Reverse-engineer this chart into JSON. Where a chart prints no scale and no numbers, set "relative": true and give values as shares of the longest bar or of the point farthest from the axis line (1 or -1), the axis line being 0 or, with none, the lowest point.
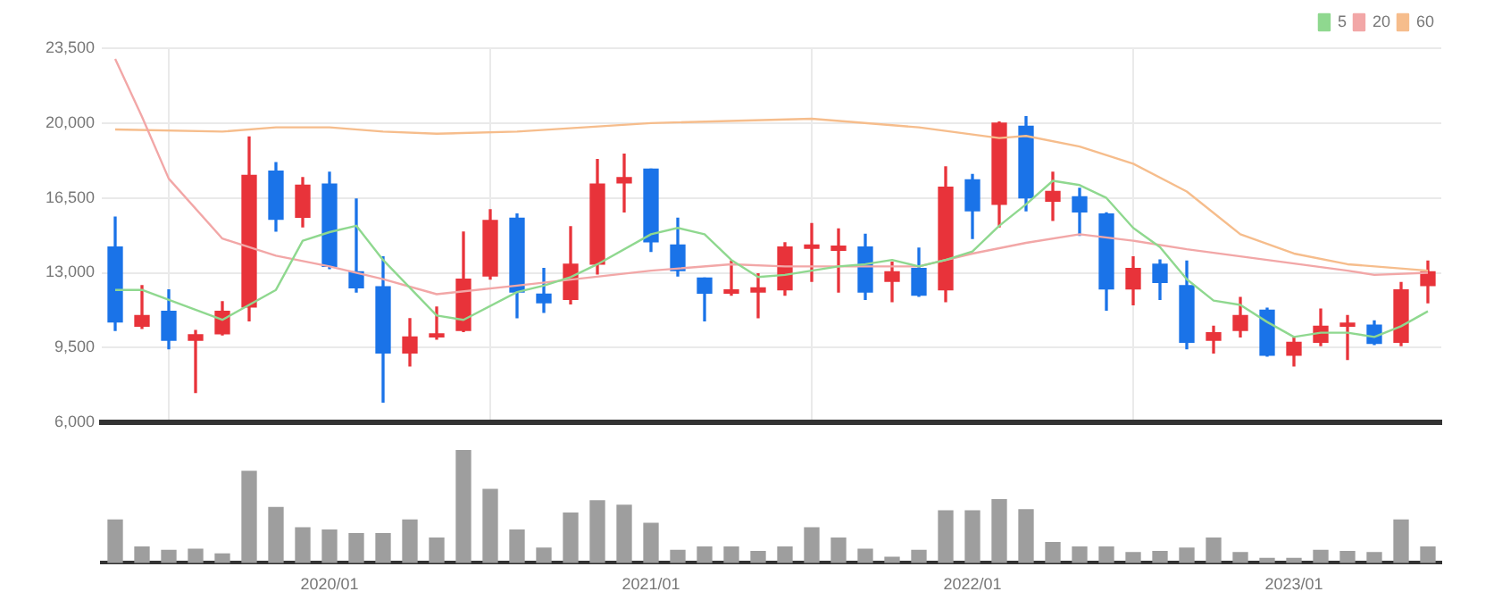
{
  "chart_data": [
    {
      "type": "candlestick",
      "x": [
        "2019-05",
        "2019-06",
        "2019-07",
        "2019-08",
        "2019-09",
        "2019-10",
        "2019-11",
        "2019-12",
        "2020-01",
        "2020-02",
        "2020-03",
        "2020-04",
        "2020-05",
        "2020-06",
        "2020-07",
        "2020-08",
        "2020-09",
        "2020-10",
        "2020-11",
        "2020-12",
        "2021-01",
        "2021-02",
        "2021-03",
        "2021-04",
        "2021-05",
        "2021-06",
        "2021-07",
        "2021-08",
        "2021-09",
        "2021-10",
        "2021-11",
        "2021-12",
        "2022-01",
        "2022-02",
        "2022-03",
        "2022-04",
        "2022-05",
        "2022-06",
        "2022-07",
        "2022-08",
        "2022-09",
        "2022-10",
        "2022-11",
        "2022-12",
        "2023-01",
        "2023-02",
        "2023-03",
        "2023-04",
        "2023-05",
        "2023-06"
      ],
      "ohlc": [
        [
          14200,
          15600,
          10300,
          10700
        ],
        [
          10500,
          12400,
          10400,
          11000
        ],
        [
          11200,
          12200,
          9450,
          9850
        ],
        [
          9850,
          10300,
          7400,
          10100
        ],
        [
          10150,
          11650,
          10100,
          11200
        ],
        [
          11400,
          19350,
          10750,
          17550
        ],
        [
          17750,
          18150,
          14950,
          15500
        ],
        [
          15600,
          17450,
          15150,
          17100
        ],
        [
          17150,
          17700,
          13200,
          13300
        ],
        [
          13050,
          16450,
          12100,
          12300
        ],
        [
          12350,
          13750,
          6950,
          9250
        ],
        [
          9250,
          10850,
          8650,
          10000
        ],
        [
          10000,
          11400,
          9900,
          10150
        ],
        [
          10300,
          14900,
          10250,
          12700
        ],
        [
          12850,
          15950,
          12700,
          15450
        ],
        [
          15550,
          15750,
          10900,
          12100
        ],
        [
          12000,
          13200,
          11150,
          11600
        ],
        [
          11750,
          15150,
          11550,
          13400
        ],
        [
          13400,
          18300,
          12950,
          17150
        ],
        [
          17200,
          18550,
          15850,
          17450
        ],
        [
          17850,
          17850,
          14000,
          14450
        ],
        [
          14300,
          15550,
          12850,
          13100
        ],
        [
          12750,
          12750,
          10750,
          12050
        ],
        [
          12050,
          13550,
          11950,
          12200
        ],
        [
          12100,
          12950,
          10900,
          12300
        ],
        [
          12200,
          14400,
          11950,
          14200
        ],
        [
          14150,
          15300,
          12600,
          14300
        ],
        [
          14050,
          15050,
          12100,
          14250
        ],
        [
          14200,
          14800,
          11750,
          12100
        ],
        [
          12600,
          13500,
          11650,
          13050
        ],
        [
          13200,
          14150,
          11900,
          11950
        ],
        [
          12200,
          17950,
          11650,
          17000
        ],
        [
          17350,
          17600,
          14600,
          15900
        ],
        [
          16200,
          20050,
          15150,
          20000
        ],
        [
          19850,
          20300,
          15900,
          16500
        ],
        [
          16350,
          17700,
          15450,
          16800
        ],
        [
          16550,
          16950,
          14750,
          15850
        ],
        [
          15750,
          15800,
          11250,
          12250
        ],
        [
          12250,
          13750,
          11500,
          13200
        ],
        [
          13400,
          13600,
          11750,
          12550
        ],
        [
          12400,
          13550,
          9450,
          9750
        ],
        [
          9850,
          10500,
          9250,
          10200
        ],
        [
          10300,
          11850,
          10000,
          11000
        ],
        [
          11250,
          11350,
          9100,
          9150
        ],
        [
          9150,
          9950,
          8650,
          9750
        ],
        [
          9750,
          11300,
          9600,
          10500
        ],
        [
          10500,
          11000,
          8950,
          10650
        ],
        [
          10550,
          10750,
          9650,
          9700
        ],
        [
          9750,
          12550,
          9600,
          12200
        ],
        [
          12400,
          13550,
          11600,
          13050
        ]
      ],
      "colors": [
        "#1a73e8",
        "#e8333a",
        "#1a73e8",
        "#e8333a",
        "#e8333a",
        "#e8333a",
        "#1a73e8",
        "#e8333a",
        "#1a73e8",
        "#1a73e8",
        "#1a73e8",
        "#e8333a",
        "#e8333a",
        "#e8333a",
        "#e8333a",
        "#1a73e8",
        "#1a73e8",
        "#e8333a",
        "#e8333a",
        "#e8333a",
        "#1a73e8",
        "#1a73e8",
        "#1a73e8",
        "#e8333a",
        "#e8333a",
        "#e8333a",
        "#e8333a",
        "#e8333a",
        "#1a73e8",
        "#e8333a",
        "#1a73e8",
        "#e8333a",
        "#1a73e8",
        "#e8333a",
        "#1a73e8",
        "#e8333a",
        "#1a73e8",
        "#1a73e8",
        "#e8333a",
        "#1a73e8",
        "#1a73e8",
        "#e8333a",
        "#e8333a",
        "#1a73e8",
        "#e8333a",
        "#e8333a",
        "#e8333a",
        "#1a73e8",
        "#e8333a",
        "#e8333a"
      ],
      "series": [
        {
          "type": "line",
          "name": "5",
          "color": "#8fd88f",
          "x": [
            "2019-05",
            "2019-06",
            "2019-09",
            "2019-11",
            "2019-12",
            "2020-01",
            "2020-02",
            "2020-03",
            "2020-05",
            "2020-06",
            "2020-08",
            "2020-09",
            "2020-10",
            "2020-11",
            "2021-01",
            "2021-02",
            "2021-03",
            "2021-04",
            "2021-05",
            "2021-06",
            "2021-07",
            "2021-08",
            "2021-09",
            "2021-10",
            "2021-11",
            "2021-12",
            "2022-01",
            "2022-02",
            "2022-03",
            "2022-04",
            "2022-05",
            "2022-06",
            "2022-07",
            "2022-08",
            "2022-09",
            "2022-10",
            "2022-11",
            "2022-12",
            "2023-01",
            "2023-02",
            "2023-03",
            "2023-04",
            "2023-05",
            "2023-06"
          ],
          "values": [
            12200,
            12200,
            10800,
            12200,
            14500,
            14900,
            15200,
            13600,
            11000,
            10800,
            12100,
            12400,
            12800,
            13400,
            14800,
            15100,
            14800,
            13600,
            12800,
            12900,
            13100,
            13300,
            13400,
            13600,
            13300,
            13600,
            14000,
            15200,
            16200,
            17300,
            17100,
            16500,
            15100,
            14200,
            12700,
            11700,
            11500,
            10700,
            10000,
            10200,
            10200,
            10000,
            10500,
            11200
          ]
        },
        {
          "type": "line",
          "name": "20",
          "color": "#f2a7a7",
          "x": [
            "2019-05",
            "2019-06",
            "2019-07",
            "2019-09",
            "2019-11",
            "2020-01",
            "2020-03",
            "2020-05",
            "2020-08",
            "2021-01",
            "2021-04",
            "2021-06",
            "2021-09",
            "2021-11",
            "2022-01",
            "2022-03",
            "2022-05",
            "2022-07",
            "2022-09",
            "2022-12",
            "2023-03",
            "2023-04",
            "2023-06"
          ],
          "values": [
            23000,
            20300,
            17400,
            14600,
            13800,
            13300,
            12700,
            12000,
            12400,
            13100,
            13400,
            13300,
            13300,
            13300,
            13900,
            14400,
            14800,
            14500,
            14100,
            13600,
            13100,
            12900,
            13000
          ]
        },
        {
          "type": "line",
          "name": "60",
          "color": "#f6bd8c",
          "x": [
            "2019-05",
            "2019-09",
            "2019-11",
            "2020-01",
            "2020-03",
            "2020-05",
            "2020-08",
            "2021-01",
            "2021-07",
            "2021-11",
            "2022-02",
            "2022-03",
            "2022-05",
            "2022-07",
            "2022-09",
            "2022-11",
            "2023-01",
            "2023-03",
            "2023-06"
          ],
          "values": [
            19700,
            19600,
            19800,
            19800,
            19600,
            19500,
            19600,
            20000,
            20200,
            19800,
            19300,
            19400,
            18900,
            18100,
            16800,
            14800,
            13900,
            13400,
            13100
          ]
        }
      ],
      "marker": "none",
      "legend": "top right",
      "grid": true,
      "tick_labels": "y",
      "xlim": [
        "2019-04-16",
        "2023-06-16"
      ],
      "xticks": [
        {
          "value": "2020-01",
          "label": null
        },
        {
          "value": "2021-01",
          "label": null
        },
        {
          "value": "2022-01",
          "label": null
        },
        {
          "value": "2023-01",
          "label": null
        }
      ],
      "ylim": [
        6000,
        23500
      ],
      "yticks": [
        {
          "value": 6000,
          "label": "6,000"
        },
        {
          "value": 9500,
          "label": "9,500"
        },
        {
          "value": 13000,
          "label": "13,000"
        },
        {
          "value": 16500,
          "label": "16,500"
        },
        {
          "value": 20000,
          "label": "20,000"
        },
        {
          "value": 23500,
          "label": "23,500"
        }
      ]
    },
    {
      "type": "bar",
      "relative": true,
      "color": "#9e9e9e",
      "tick_labels": "x",
      "x": [
        "2019-05",
        "2019-06",
        "2019-07",
        "2019-08",
        "2019-09",
        "2019-10",
        "2019-11",
        "2019-12",
        "2020-01",
        "2020-02",
        "2020-03",
        "2020-04",
        "2020-05",
        "2020-06",
        "2020-07",
        "2020-08",
        "2020-09",
        "2020-10",
        "2020-11",
        "2020-12",
        "2021-01",
        "2021-02",
        "2021-03",
        "2021-04",
        "2021-05",
        "2021-06",
        "2021-07",
        "2021-08",
        "2021-09",
        "2021-10",
        "2021-11",
        "2021-12",
        "2022-01",
        "2022-02",
        "2022-03",
        "2022-04",
        "2022-05",
        "2022-06",
        "2022-07",
        "2022-08",
        "2022-09",
        "2022-10",
        "2022-11",
        "2022-12",
        "2023-01",
        "2023-02",
        "2023-03",
        "2023-04",
        "2023-05",
        "2023-06"
      ],
      "values": [
        0.38,
        0.14,
        0.11,
        0.12,
        0.08,
        0.81,
        0.49,
        0.31,
        0.29,
        0.26,
        0.26,
        0.38,
        0.22,
        1,
        0.65,
        0.29,
        0.13,
        0.44,
        0.55,
        0.51,
        0.35,
        0.11,
        0.14,
        0.14,
        0.1,
        0.14,
        0.31,
        0.22,
        0.12,
        0.05,
        0.11,
        0.46,
        0.46,
        0.56,
        0.47,
        0.18,
        0.14,
        0.14,
        0.09,
        0.1,
        0.13,
        0.22,
        0.09,
        0.04,
        0.04,
        0.11,
        0.1,
        0.09,
        0.38,
        0.14
      ],
      "xlim": [
        "2019-04-16",
        "2023-06-16"
      ],
      "xticks": [
        {
          "value": "2020-01",
          "label": "2020/01"
        },
        {
          "value": "2021-01",
          "label": "2021/01"
        },
        {
          "value": "2022-01",
          "label": "2022/01"
        },
        {
          "value": "2023-01",
          "label": "2023/01"
        }
      ]
    }
  ]
}
